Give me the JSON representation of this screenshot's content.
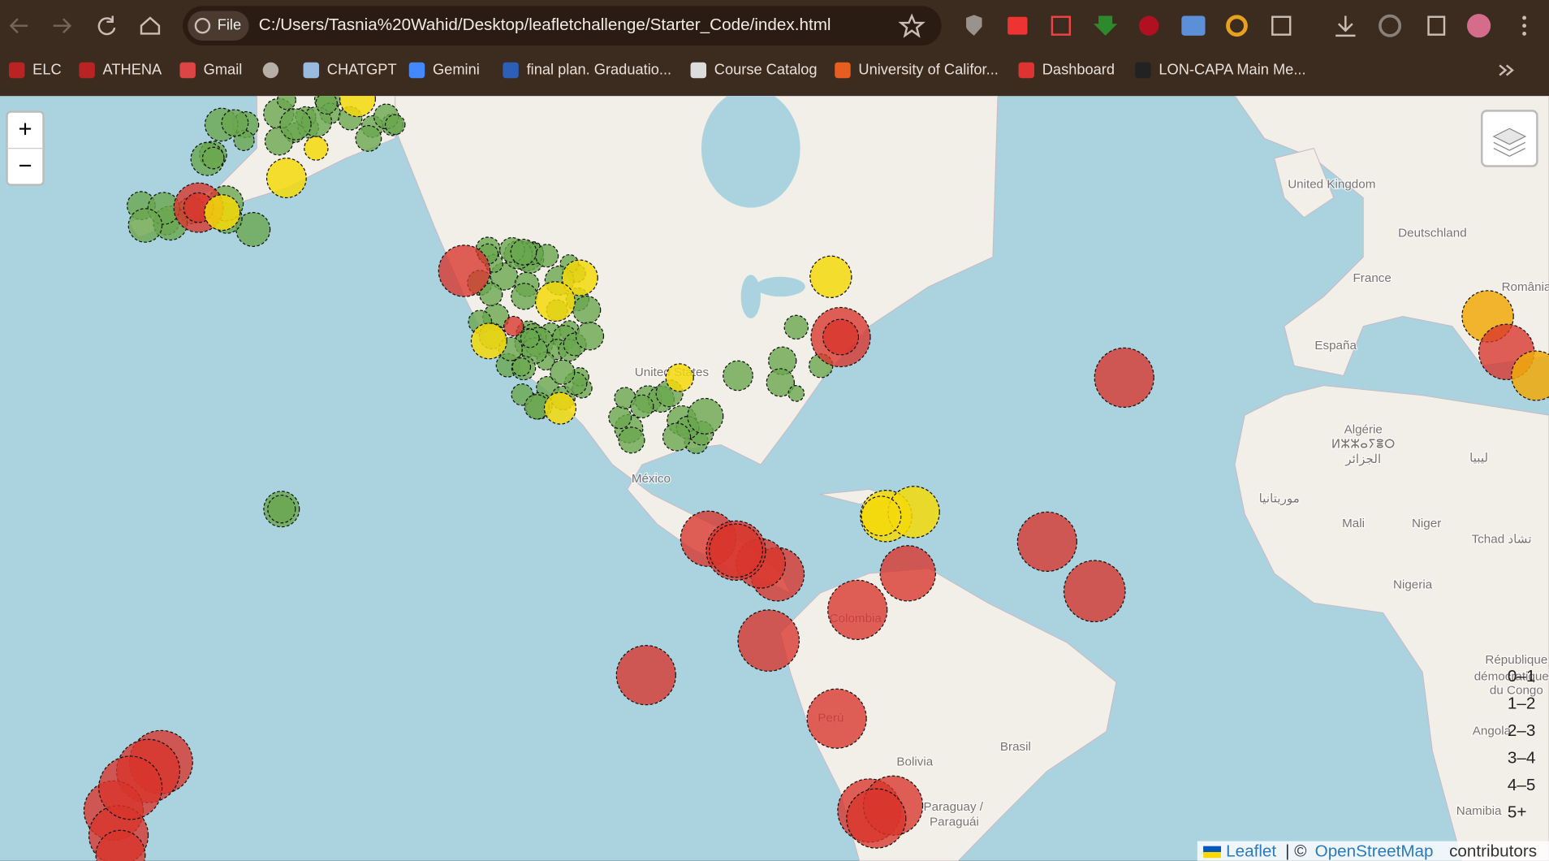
{
  "browser": {
    "site_info": "File",
    "url": "C:/Users/Tasnia%20Wahid/Desktop/leafletchallenge/Starter_Code/index.html",
    "bookmarks": [
      "ELC",
      "ATHENA",
      "Gmail",
      "CHATGPT",
      "Gemini",
      "final plan. Graduatio...",
      "Course Catalog",
      "University of Califor...",
      "Dashboard",
      "LON-CAPA Main Me..."
    ]
  },
  "map": {
    "zoom_in": "+",
    "zoom_out": "−",
    "labels": [
      "United Kingdom",
      "Deutschland",
      "France",
      "España",
      "România",
      "Algérie",
      "ⵍⵣⵣⴰⵢⴻⵔ",
      "الجزائر",
      "ليبيا",
      "موريتانيا",
      "Mali",
      "Niger",
      "Tchad تشاد",
      "Nigeria",
      "République",
      "démocratique",
      "du Congo",
      "Angola",
      "Namibia",
      "Brasil",
      "Bolivia",
      "Paraguay /",
      "Paraguái",
      "Perú",
      "Colombia",
      "México",
      "United States"
    ],
    "legend": [
      "0–1",
      "1–2",
      "2–3",
      "3–4",
      "4–5",
      "5+"
    ],
    "attribution": {
      "leaflet": "Leaflet",
      "separator": "| ©",
      "osm": "OpenStreetMap",
      "suffix": "contributors"
    }
  }
}
